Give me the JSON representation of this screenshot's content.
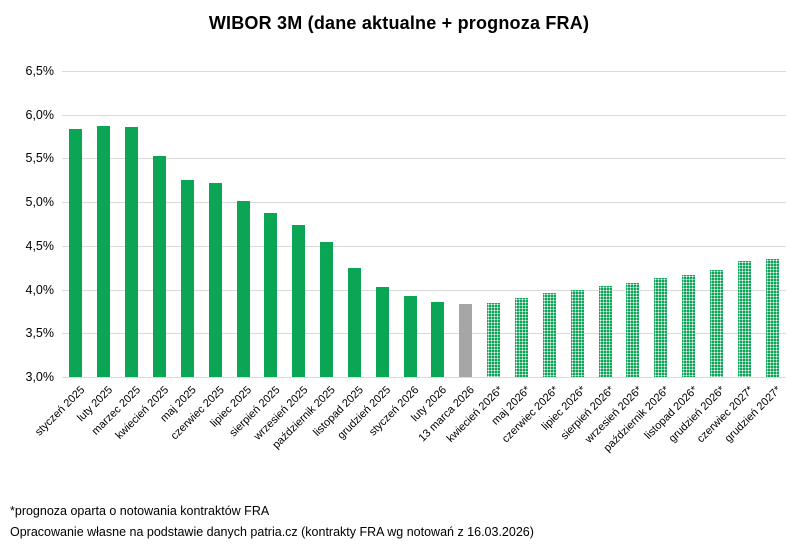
{
  "title": "WIBOR 3M (dane aktualne + prognoza FRA)",
  "footer": {
    "line1": "*prognoza oparta o notowania kontraktów FRA",
    "line2": "Opracowanie własne na podstawie danych patria.cz (kontrakty FRA wg notowań z 16.03.2026)"
  },
  "colors": {
    "actual_bar": "#0aa655",
    "current_bar": "#a6a6a6",
    "forecast_bar": "#0aa655",
    "gridline": "#d9d9d9",
    "text": "#000000"
  },
  "chart_data": {
    "type": "bar",
    "title": "WIBOR 3M (dane aktualne + prognoza FRA)",
    "xlabel": "",
    "ylabel": "",
    "ylim": [
      3.0,
      6.5
    ],
    "y_ticks": [
      3.0,
      3.5,
      4.0,
      4.5,
      5.0,
      5.5,
      6.0,
      6.5
    ],
    "y_tick_labels": [
      "3,0%",
      "3,5%",
      "4,0%",
      "4,5%",
      "5,0%",
      "5,5%",
      "6,0%",
      "6,5%"
    ],
    "grid": "horizontal",
    "legend": "none",
    "categories": [
      "styczeń 2025",
      "luty 2025",
      "marzec 2025",
      "kwiecień 2025",
      "maj 2025",
      "czerwiec 2025",
      "lipiec 2025",
      "sierpień 2025",
      "wrzesień 2025",
      "październik 2025",
      "listopad 2025",
      "grudzień 2025",
      "styczeń 2026",
      "luty 2026",
      "13 marca 2026",
      "kwiecień 2026*",
      "maj 2026*",
      "czerwiec 2026*",
      "lipiec 2026*",
      "sierpień 2026*",
      "wrzesień 2026*",
      "październik 2026*",
      "listopad 2026*",
      "grudzień 2026*",
      "czerwiec 2027*",
      "grudzień 2027*"
    ],
    "values": [
      5.84,
      5.87,
      5.86,
      5.53,
      5.25,
      5.22,
      5.01,
      4.88,
      4.74,
      4.54,
      4.25,
      4.03,
      3.93,
      3.86,
      3.84,
      3.85,
      3.9,
      3.96,
      4.0,
      4.04,
      4.08,
      4.13,
      4.17,
      4.22,
      4.33,
      4.35
    ],
    "bar_styles": [
      "actual",
      "actual",
      "actual",
      "actual",
      "actual",
      "actual",
      "actual",
      "actual",
      "actual",
      "actual",
      "actual",
      "actual",
      "actual",
      "actual",
      "current",
      "forecast",
      "forecast",
      "forecast",
      "forecast",
      "forecast",
      "forecast",
      "forecast",
      "forecast",
      "forecast",
      "forecast",
      "forecast"
    ],
    "series_notes": "solid green = actual WIBOR 3M data, gray = latest fixing (13.03.2026), dotted green = FRA-based forecast"
  }
}
